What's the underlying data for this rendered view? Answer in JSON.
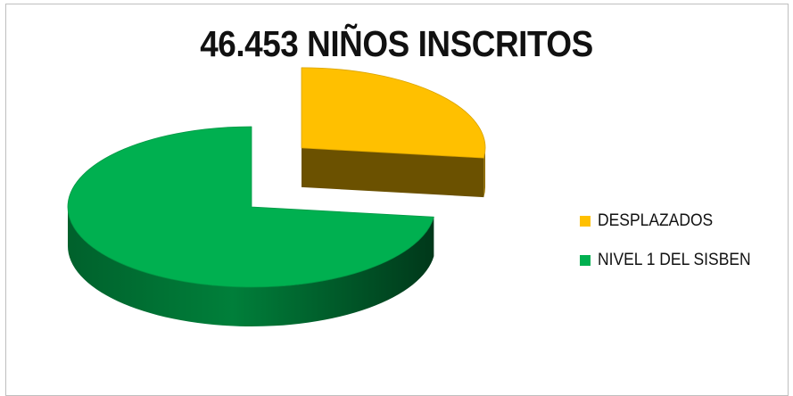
{
  "chart_data": {
    "type": "pie",
    "title": "46.453 NIÑOS INSCRITOS",
    "categories": [
      "DESPLAZADOS",
      "NIVEL 1 DEL SISBEN"
    ],
    "values": [
      27,
      73
    ],
    "colors": [
      "#ffc000",
      "#00b050"
    ],
    "legend_position": "right",
    "exploded": [
      "DESPLAZADOS"
    ],
    "style": "3d"
  }
}
